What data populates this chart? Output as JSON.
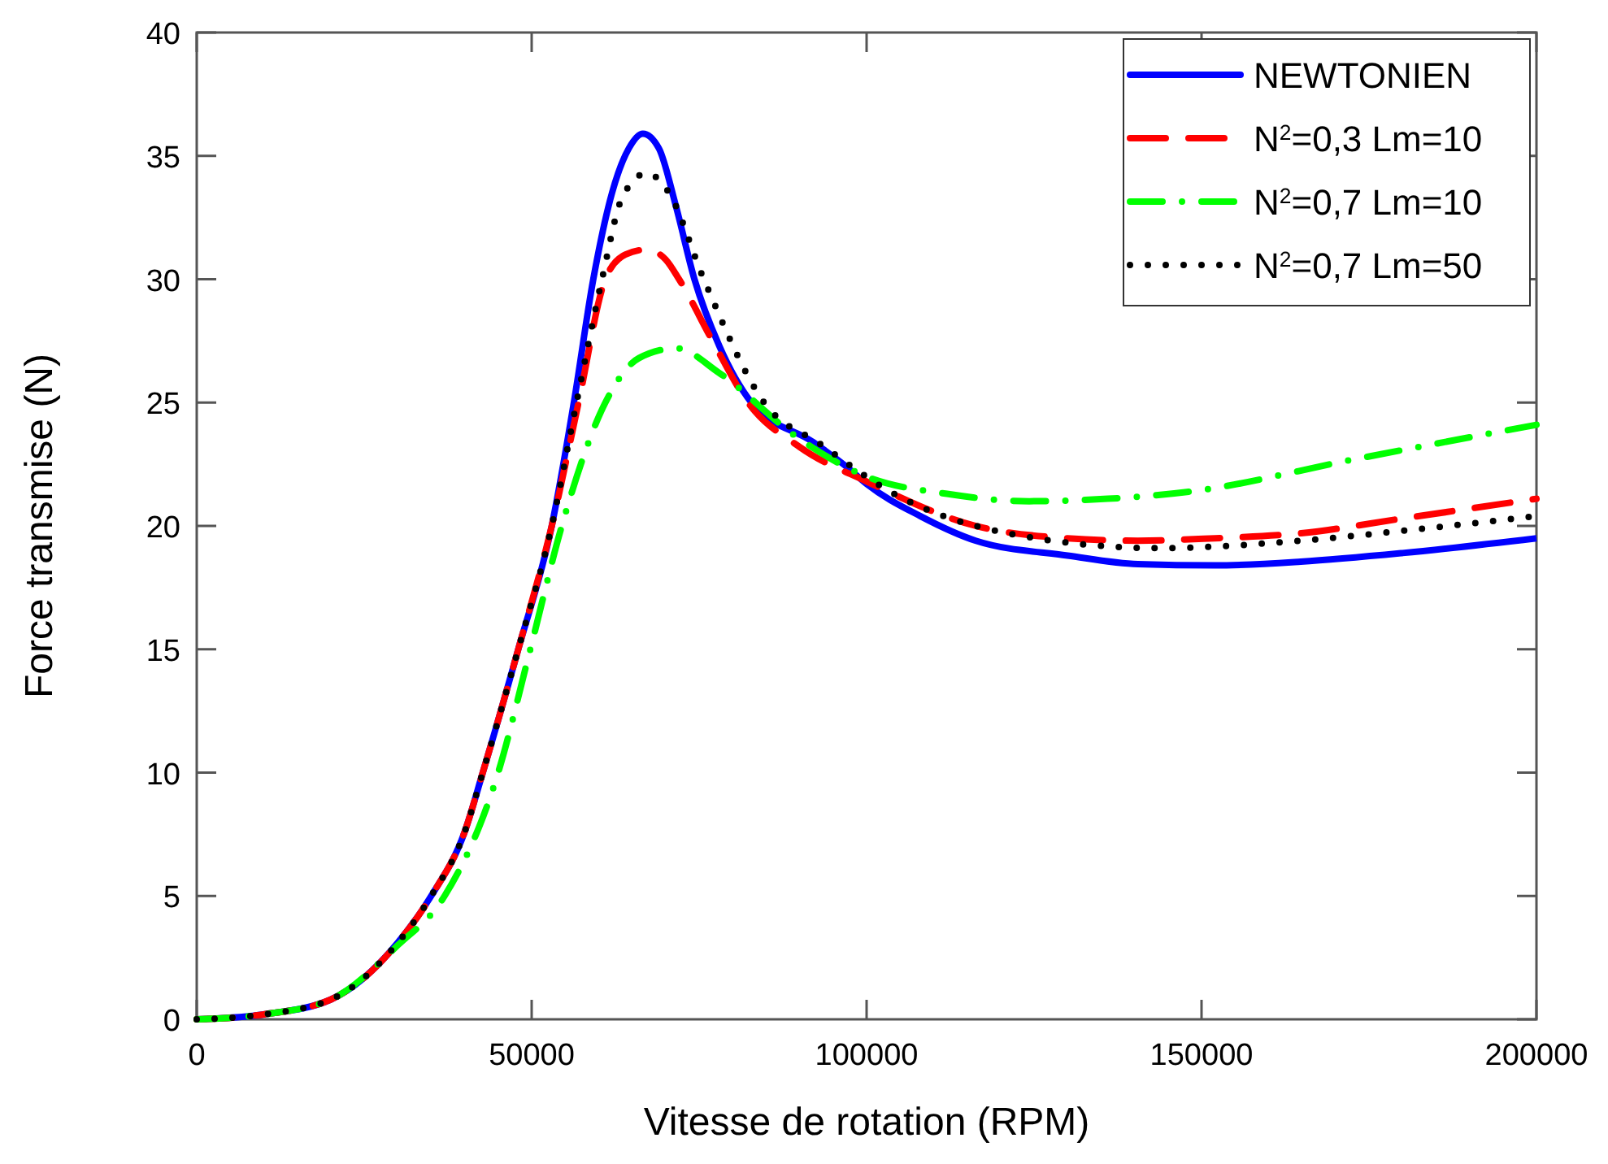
{
  "chart_data": {
    "type": "line",
    "xlabel": "Vitesse de rotation  (RPM)",
    "ylabel": "Force transmise  (N)",
    "xlim": [
      0,
      200000
    ],
    "ylim": [
      0,
      40
    ],
    "xticks": [
      0,
      50000,
      100000,
      150000,
      200000
    ],
    "yticks": [
      0,
      5,
      10,
      15,
      20,
      25,
      30,
      35,
      40
    ],
    "grid": false,
    "legend": "top right",
    "marker": "none",
    "series": [
      {
        "name": "NEWTONIEN",
        "color": "#0000ff",
        "line_style": "solid",
        "x": [
          0,
          10000,
          20000,
          30000,
          35000,
          40000,
          42700,
          48000,
          53000,
          56300,
          59200,
          62000,
          64500,
          66600,
          69000,
          71500,
          74300,
          78000,
          82800,
          92000,
          97000,
          100000,
          108000,
          116300,
          130000,
          140500,
          152000,
          164800,
          180000,
          200000
        ],
        "values": [
          0,
          0.2,
          0.8,
          3.1,
          5,
          7.6,
          10,
          15,
          20,
          25,
          30,
          33.5,
          35.3,
          35.9,
          35.3,
          33,
          30,
          27.3,
          25,
          23.4,
          22.4,
          21.7,
          20.4,
          19.4,
          18.8,
          18.45,
          18.4,
          18.55,
          18.9,
          19.5
        ]
      },
      {
        "name": "N$^{2}$=0,3 Lm=10",
        "color": "#ff0000",
        "line_style": "dashed",
        "x": [
          0,
          10000,
          20000,
          30000,
          35000,
          40000,
          42700,
          48000,
          53000,
          57000,
          61000,
          64000,
          67200,
          70000,
          72000,
          77000,
          82300,
          90000,
          100000,
          116300,
          130000,
          140500,
          152000,
          164800,
          180000,
          200000
        ],
        "values": [
          0,
          0.2,
          0.8,
          3.1,
          5,
          7.6,
          10,
          15,
          20,
          25,
          30,
          31,
          31.2,
          30.8,
          30,
          27.5,
          25,
          23.2,
          21.8,
          20,
          19.5,
          19.4,
          19.5,
          19.7,
          20.3,
          21.1
        ]
      },
      {
        "name": "N$^{2}$=0,7 Lm=10",
        "color": "#00ff00",
        "line_style": "dashdot",
        "x": [
          0,
          10000,
          20000,
          30000,
          37000,
          45000,
          49800,
          54500,
          61000,
          66000,
          71600,
          78000,
          89600,
          100000,
          112000,
          124300,
          136000,
          148500,
          172800,
          200000
        ],
        "values": [
          0,
          0.2,
          0.8,
          3,
          5,
          10,
          15,
          20,
          25,
          26.8,
          27.2,
          26.2,
          23.6,
          22,
          21.3,
          21,
          21.1,
          21.4,
          22.7,
          24.1
        ]
      },
      {
        "name": "N$^{2}$=0,7 Lm=50",
        "color": "#000000",
        "line_style": "dotted",
        "x": [
          0,
          10000,
          20000,
          30000,
          35000,
          40000,
          42700,
          48000,
          53000,
          56700,
          60500,
          63500,
          67200,
          70500,
          75700,
          84700,
          93200,
          104100,
          121100,
          143700,
          164800,
          180000,
          200000
        ],
        "values": [
          0,
          0.2,
          0.8,
          3.1,
          5,
          7.6,
          10,
          15,
          20,
          25,
          30,
          33.3,
          34.3,
          33.5,
          30,
          25,
          23.3,
          21.3,
          19.7,
          19.1,
          19.4,
          19.8,
          20.4
        ]
      }
    ]
  }
}
